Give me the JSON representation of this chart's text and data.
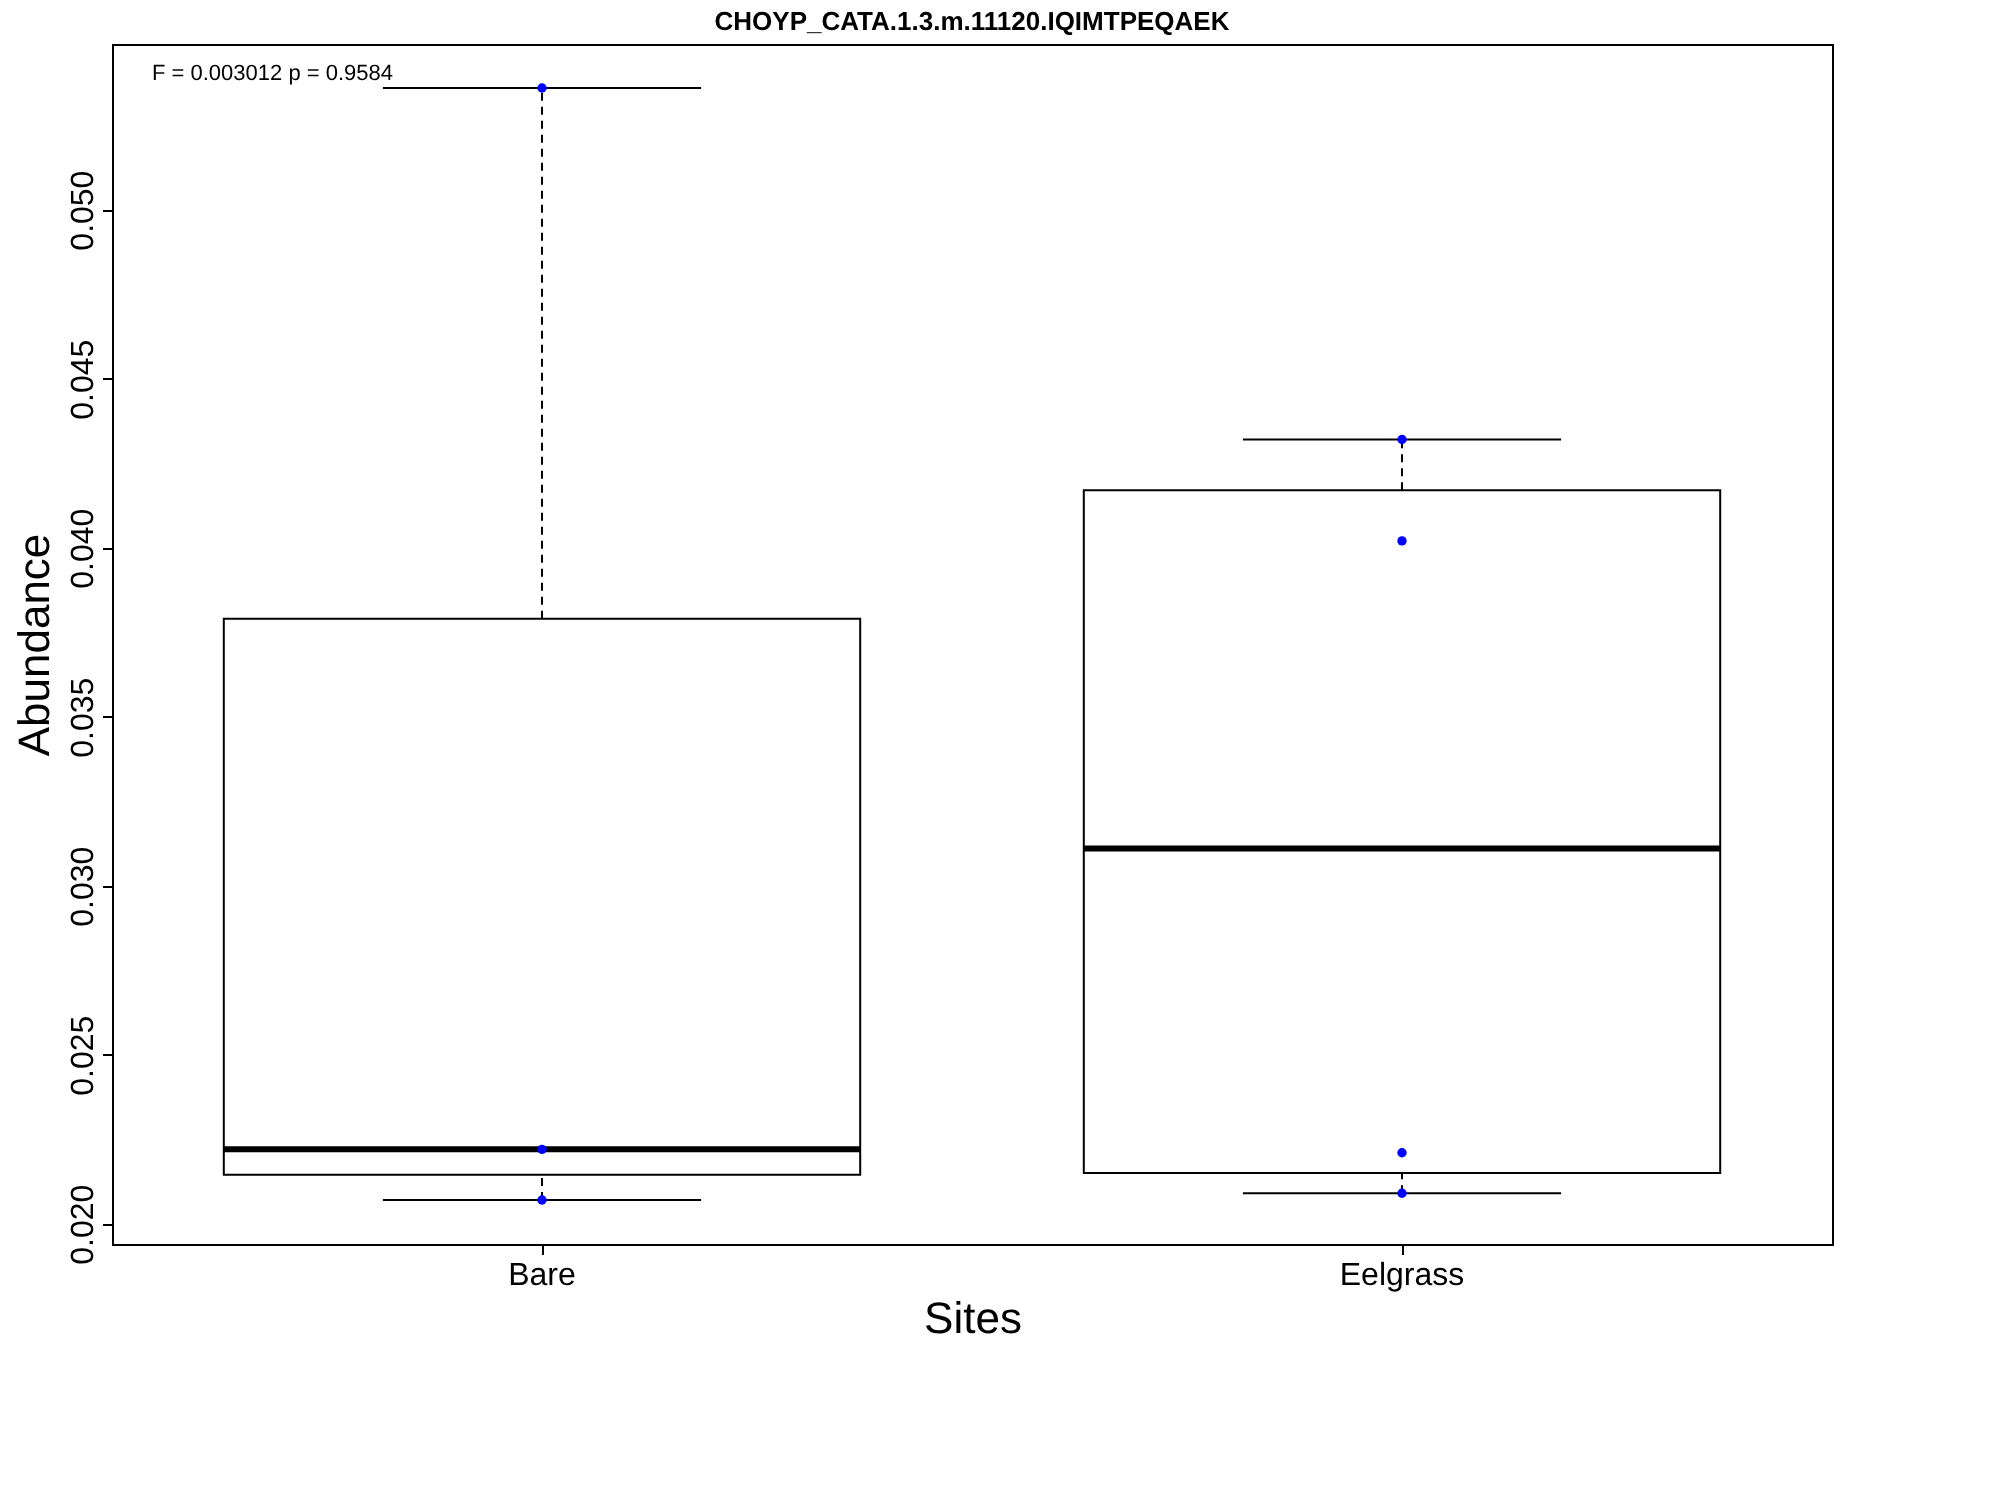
{
  "chart_data": {
    "type": "box",
    "title": "CHOYP_CATA.1.3.m.11120.IQIMTPEQAEK",
    "xlabel": "Sites",
    "ylabel": "Abundance",
    "categories": [
      "Bare",
      "Eelgrass"
    ],
    "boxes": [
      {
        "low": 0.0207,
        "q1": 0.02145,
        "median": 0.0222,
        "q3": 0.0379,
        "high": 0.0536
      },
      {
        "low": 0.0209,
        "q1": 0.0215,
        "median": 0.0311,
        "q3": 0.0417,
        "high": 0.0432
      }
    ],
    "series": [
      {
        "type": "scatter",
        "color": "#0000ff",
        "x": [
          "Bare",
          "Bare",
          "Bare",
          "Eelgrass",
          "Eelgrass",
          "Eelgrass",
          "Eelgrass"
        ],
        "values": [
          0.0536,
          0.0222,
          0.0207,
          0.0432,
          0.0402,
          0.0221,
          0.0209
        ]
      }
    ],
    "ylim": [
      0.0194,
      0.0549
    ],
    "yticks": [
      {
        "value": 0.02,
        "label": "0.020"
      },
      {
        "value": 0.025,
        "label": "0.025"
      },
      {
        "value": 0.03,
        "label": "0.030"
      },
      {
        "value": 0.035,
        "label": "0.035"
      },
      {
        "value": 0.04,
        "label": "0.040"
      },
      {
        "value": 0.045,
        "label": "0.045"
      },
      {
        "value": 0.05,
        "label": "0.050"
      }
    ],
    "annotations": [
      "F = 0.003012 p = 0.9584"
    ],
    "grid": false,
    "marker": "circle",
    "line_style": "dashed"
  }
}
